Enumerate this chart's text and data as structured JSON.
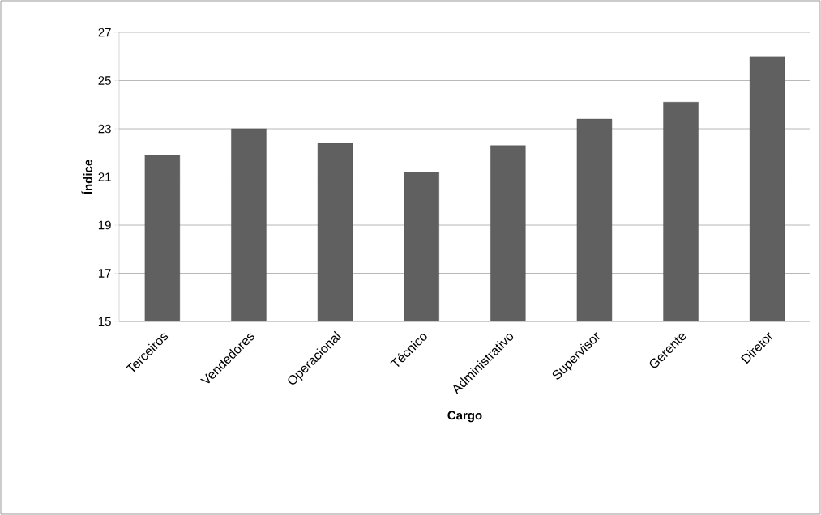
{
  "chart_data": {
    "type": "bar",
    "xlabel": "Cargo",
    "ylabel": "Índice",
    "categories": [
      "Terceiros",
      "Vendedores",
      "Operacional",
      "Técnico",
      "Administrativo",
      "Supervisor",
      "Gerente",
      "Diretor"
    ],
    "values": [
      21.9,
      23.0,
      22.4,
      21.2,
      22.3,
      23.4,
      24.1,
      26.0
    ],
    "color": "#606060",
    "ylim": [
      15,
      27
    ],
    "yticks": [
      15,
      17,
      19,
      21,
      23,
      25,
      27
    ],
    "grid": "y"
  }
}
